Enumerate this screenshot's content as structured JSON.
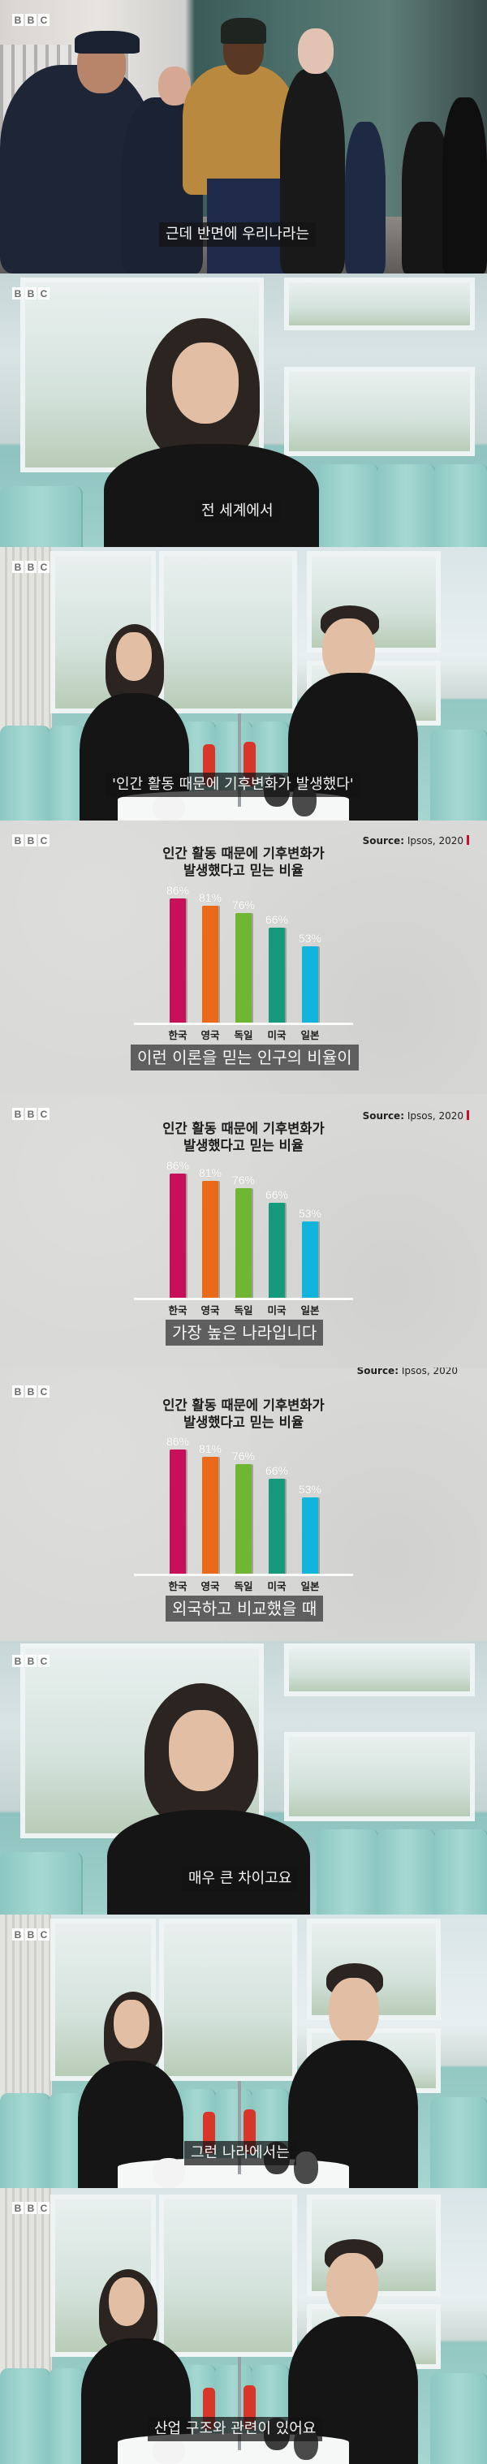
{
  "brand": {
    "logo_letters": [
      "B",
      "B",
      "C"
    ]
  },
  "frames": [
    {
      "id": 1,
      "scene": "protest-arrest",
      "subtitle": "근데 반면에 우리나라는"
    },
    {
      "id": 2,
      "scene": "interview-woman-solo",
      "subtitle": "전 세계에서"
    },
    {
      "id": 3,
      "scene": "interview-duo",
      "subtitle": "'인간 활동 때문에 기후변화가 발생했다'"
    },
    {
      "id": 4,
      "scene": "chart",
      "subtitle": "이런 이론을 믿는 인구의 비율이"
    },
    {
      "id": 5,
      "scene": "chart",
      "subtitle": "가장 높은 나라입니다"
    },
    {
      "id": 6,
      "scene": "chart",
      "subtitle": "외국하고 비교했을 때"
    },
    {
      "id": 7,
      "scene": "interview-woman-solo",
      "subtitle": "매우 큰 차이고요"
    },
    {
      "id": 8,
      "scene": "interview-duo",
      "subtitle": "그런 나라에서는"
    },
    {
      "id": 9,
      "scene": "interview-duo",
      "subtitle": "산업 구조와 관련이 있어요"
    }
  ],
  "chart": {
    "title_line1": "인간 활동 때문에 기후변화가",
    "title_line2": "발생했다고 믿는 비율",
    "source_label": "Source:",
    "source_value": "Ipsos, 2020",
    "bars": [
      {
        "category": "한국",
        "value": 86,
        "label": "86%",
        "color": "#c8105a"
      },
      {
        "category": "영국",
        "value": 81,
        "label": "81%",
        "color": "#ea6a1a"
      },
      {
        "category": "독일",
        "value": 76,
        "label": "76%",
        "color": "#6fb632"
      },
      {
        "category": "미국",
        "value": 66,
        "label": "66%",
        "color": "#169a7e"
      },
      {
        "category": "일본",
        "value": 53,
        "label": "53%",
        "color": "#12b4dc"
      }
    ]
  },
  "chart_data": {
    "type": "bar",
    "title": "인간 활동 때문에 기후변화가 발생했다고 믿는 비율",
    "categories": [
      "한국",
      "영국",
      "독일",
      "미국",
      "일본"
    ],
    "values": [
      86,
      81,
      76,
      66,
      53
    ],
    "value_labels": [
      "86%",
      "81%",
      "76%",
      "66%",
      "53%"
    ],
    "colors": [
      "#c8105a",
      "#ea6a1a",
      "#6fb632",
      "#169a7e",
      "#12b4dc"
    ],
    "xlabel": "",
    "ylabel": "",
    "ylim": [
      0,
      100
    ],
    "grid": false,
    "legend": null,
    "source": "Source: Ipsos, 2020"
  }
}
